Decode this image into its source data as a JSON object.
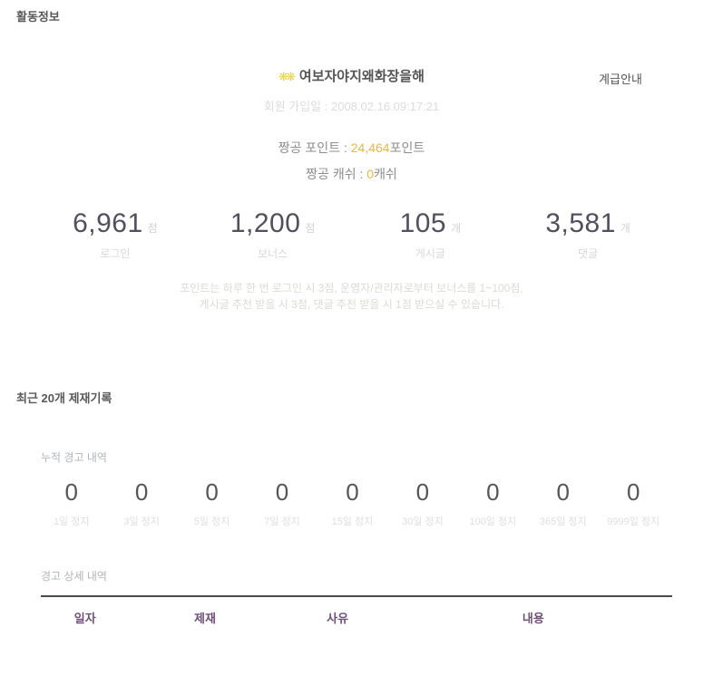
{
  "page": {
    "title": "활동정보",
    "sanctions_title": "최근 20개 제재기록"
  },
  "icons": {
    "medal_glyph": "❋❋"
  },
  "profile": {
    "username": "여보자야지왜화장을해",
    "rank_link": "계급안내",
    "join_date": "회원 가입일 : 2008.02.16 09:17:21",
    "point_label": "짱공 포인트 : ",
    "point_value": "24,464",
    "point_suffix": "포인트",
    "cash_label": "짱공 캐쉬 : ",
    "cash_value": "0",
    "cash_suffix": "캐쉬"
  },
  "stats": [
    {
      "value": "6,961",
      "unit": "점",
      "label": "로그인"
    },
    {
      "value": "1,200",
      "unit": "점",
      "label": "보너스"
    },
    {
      "value": "105",
      "unit": "개",
      "label": "게시글"
    },
    {
      "value": "3,581",
      "unit": "개",
      "label": "댓글"
    }
  ],
  "points_info": {
    "line1": "포인트는 하루 한 번  로그인 시 3점, 운영자/관리자로부터  보너스를 1~100점,",
    "line2": "게시글 추천 받을 시 3점, 댓글 추천 받을 시 1점 받으실 수 있습니다."
  },
  "warnings": {
    "summary_title": "누적 경고 내역",
    "items": [
      {
        "count": "0",
        "label": "1일 정지"
      },
      {
        "count": "0",
        "label": "3일 정지"
      },
      {
        "count": "0",
        "label": "5일 정지"
      },
      {
        "count": "0",
        "label": "7일 정지"
      },
      {
        "count": "0",
        "label": "15일 정지"
      },
      {
        "count": "0",
        "label": "30일 정지"
      },
      {
        "count": "0",
        "label": "100일 정지"
      },
      {
        "count": "0",
        "label": "365일 정지"
      },
      {
        "count": "0",
        "label": "9999일 정지"
      }
    ],
    "detail_title": "경고 상세 내역",
    "table_headers": [
      "일자",
      "제재",
      "사유",
      "내용"
    ]
  },
  "colors": {
    "accent_orange": "#f0b63f",
    "table_header_purple": "#6f4f78",
    "medal_yellow": "#e9d34f"
  }
}
